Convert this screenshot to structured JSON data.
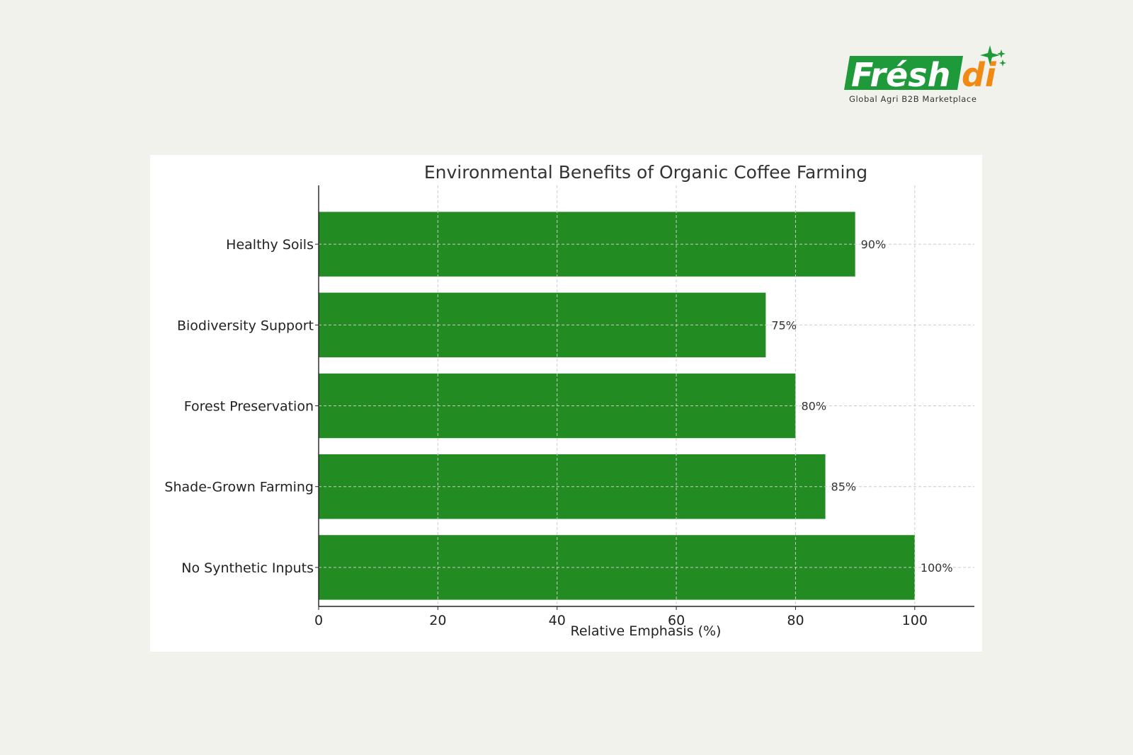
{
  "brand": {
    "name_main": "Frésh",
    "name_accent": "di",
    "tagline": "Global Agri B2B Marketplace",
    "colors": {
      "green": "#1f9a3b",
      "orange": "#f08a13"
    }
  },
  "chart_data": {
    "type": "bar",
    "orientation": "horizontal",
    "title": "Environmental Benefits of Organic Coffee Farming",
    "xlabel": "Relative Emphasis (%)",
    "ylabel": "",
    "categories": [
      "Healthy Soils",
      "Biodiversity Support",
      "Forest Preservation",
      "Shade-Grown Farming",
      "No Synthetic Inputs"
    ],
    "values": [
      90,
      75,
      80,
      85,
      100
    ],
    "data_labels": [
      "90%",
      "75%",
      "80%",
      "85%",
      "100%"
    ],
    "xlim": [
      0,
      110
    ],
    "xticks": [
      0,
      20,
      40,
      60,
      80,
      100
    ],
    "xtick_labels": [
      "0",
      "20",
      "40",
      "60",
      "80",
      "100"
    ],
    "grid": true,
    "bar_color": "#228b22",
    "grid_color": "#cccccc"
  }
}
